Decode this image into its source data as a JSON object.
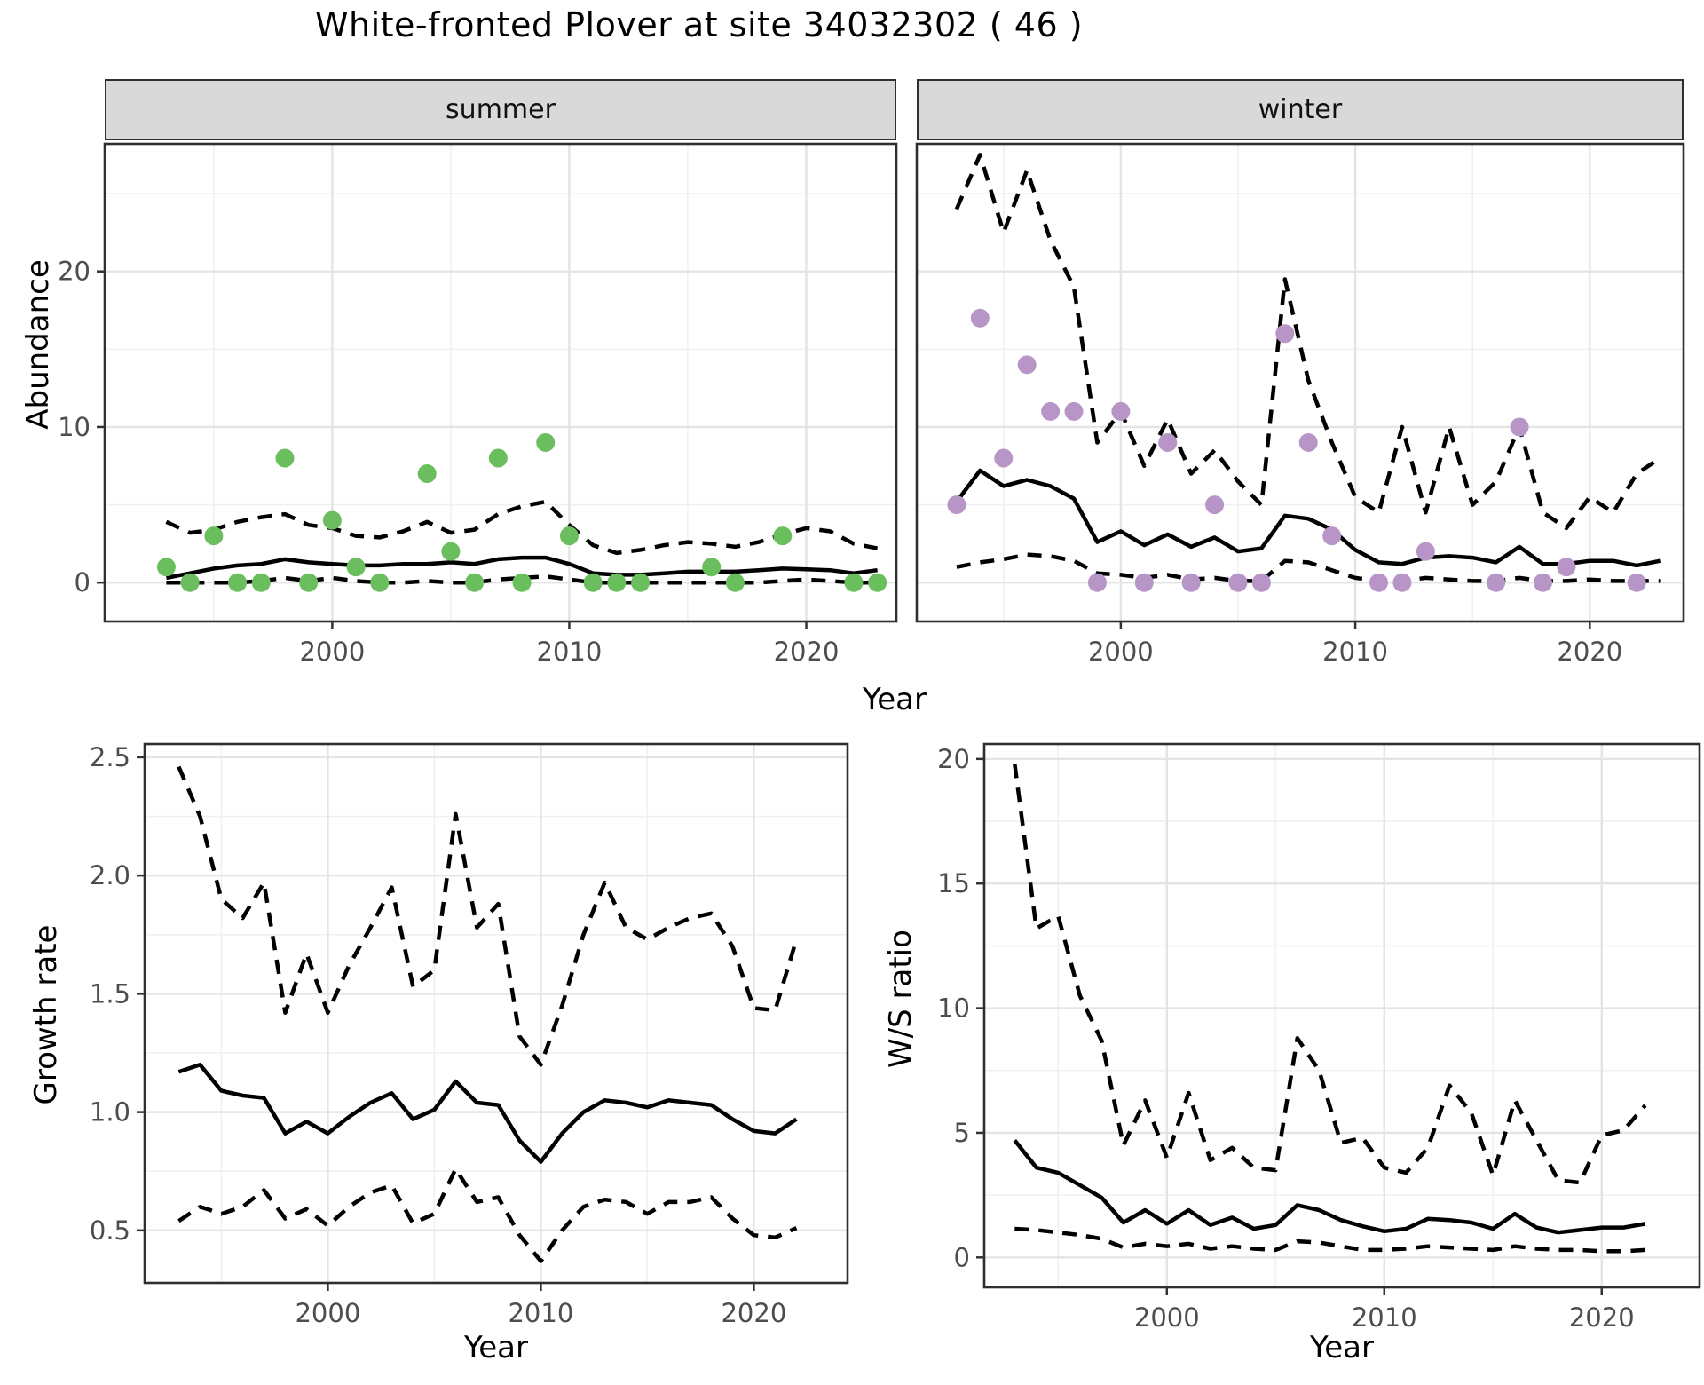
{
  "title": "White-fronted Plover at site 34032302 ( 46 )",
  "axis_labels": {
    "x": "Year",
    "y_abundance": "Abundance",
    "y_growth": "Growth rate",
    "y_ws": "W/S ratio"
  },
  "facets": {
    "summer": "summer",
    "winter": "winter"
  },
  "colors": {
    "summer_point": "#6BBE5E",
    "winter_point": "#B795C7",
    "line": "#000000",
    "strip_bg": "#D9D9D9",
    "panel_border": "#2F2F2F",
    "grid_major": "#E4E4E4",
    "grid_minor": "#F0F0F0",
    "axis_text": "#4D4D4D",
    "tick": "#333333"
  },
  "chart_data": [
    {
      "id": "abundance-summer",
      "type": "line",
      "panel": "summer",
      "title_strip": "summer",
      "ylabel": "Abundance",
      "xlabel": "Year",
      "x_domain": [
        1990.4,
        2023.8
      ],
      "y_domain": [
        -2.5,
        28.2
      ],
      "x_ticks": [
        2000,
        2010,
        2020
      ],
      "x_tick_labels": [
        "2000",
        "2010",
        "2020"
      ],
      "x_minor": [
        1995,
        2005,
        2015
      ],
      "y_ticks": [
        0,
        10,
        20
      ],
      "y_tick_labels": [
        "0",
        "10",
        "20"
      ],
      "y_minor": [
        5,
        15,
        25
      ],
      "show_y_labels": true,
      "years": [
        1993,
        1994,
        1995,
        1996,
        1997,
        1998,
        1999,
        2000,
        2001,
        2002,
        2003,
        2004,
        2005,
        2006,
        2007,
        2008,
        2009,
        2010,
        2011,
        2012,
        2013,
        2014,
        2015,
        2016,
        2017,
        2018,
        2019,
        2020,
        2021,
        2022,
        2023
      ],
      "series": [
        {
          "name": "upper95",
          "style": "dashed",
          "values": [
            3.9,
            3.2,
            3.4,
            3.9,
            4.2,
            4.4,
            3.7,
            3.5,
            3.0,
            2.9,
            3.3,
            3.9,
            3.2,
            3.4,
            4.4,
            4.9,
            5.2,
            3.7,
            2.4,
            1.9,
            2.1,
            2.4,
            2.6,
            2.5,
            2.3,
            2.6,
            3.1,
            3.5,
            3.3,
            2.5,
            2.2
          ]
        },
        {
          "name": "fit",
          "style": "solid",
          "values": [
            0.3,
            0.6,
            0.9,
            1.1,
            1.2,
            1.5,
            1.3,
            1.2,
            1.1,
            1.1,
            1.2,
            1.2,
            1.3,
            1.2,
            1.5,
            1.6,
            1.6,
            1.2,
            0.6,
            0.5,
            0.5,
            0.6,
            0.7,
            0.7,
            0.7,
            0.8,
            0.9,
            0.85,
            0.8,
            0.6,
            0.8
          ]
        },
        {
          "name": "lower95",
          "style": "dashed",
          "values": [
            0,
            0,
            0,
            0,
            0.1,
            0.3,
            0.1,
            0.3,
            0.1,
            0,
            0,
            0.1,
            0,
            0,
            0.2,
            0.3,
            0.4,
            0.2,
            0,
            0,
            0,
            0,
            0,
            0,
            0,
            0,
            0.1,
            0.2,
            0.1,
            0,
            0
          ]
        }
      ],
      "points": {
        "name": "observed-counts",
        "color": "#6BBE5E",
        "data": [
          [
            1993,
            1
          ],
          [
            1994,
            0
          ],
          [
            1995,
            3
          ],
          [
            1996,
            0
          ],
          [
            1997,
            0
          ],
          [
            1998,
            8
          ],
          [
            1999,
            0
          ],
          [
            2000,
            4
          ],
          [
            2001,
            1
          ],
          [
            2002,
            0
          ],
          [
            2004,
            7
          ],
          [
            2005,
            2
          ],
          [
            2006,
            0
          ],
          [
            2007,
            8
          ],
          [
            2008,
            0
          ],
          [
            2009,
            9
          ],
          [
            2010,
            3
          ],
          [
            2011,
            0
          ],
          [
            2012,
            0
          ],
          [
            2013,
            0
          ],
          [
            2016,
            1
          ],
          [
            2017,
            0
          ],
          [
            2019,
            3
          ],
          [
            2022,
            0
          ],
          [
            2023,
            0
          ]
        ]
      }
    },
    {
      "id": "abundance-winter",
      "type": "line",
      "panel": "winter",
      "title_strip": "winter",
      "ylabel": "Abundance",
      "xlabel": "Year",
      "x_domain": [
        1991.3,
        2024.0
      ],
      "y_domain": [
        -2.5,
        28.2
      ],
      "x_ticks": [
        2000,
        2010,
        2020
      ],
      "x_tick_labels": [
        "2000",
        "2010",
        "2020"
      ],
      "x_minor": [
        1995,
        2005,
        2015
      ],
      "y_ticks": [
        0,
        10,
        20
      ],
      "y_tick_labels": [
        "0",
        "10",
        "20"
      ],
      "y_minor": [
        5,
        15,
        25
      ],
      "show_y_labels": false,
      "years": [
        1993,
        1994,
        1995,
        1996,
        1997,
        1998,
        1999,
        2000,
        2001,
        2002,
        2003,
        2004,
        2005,
        2006,
        2007,
        2008,
        2009,
        2010,
        2011,
        2012,
        2013,
        2014,
        2015,
        2016,
        2017,
        2018,
        2019,
        2020,
        2021,
        2022,
        2023
      ],
      "series": [
        {
          "name": "upper95",
          "style": "dashed",
          "values": [
            24,
            27.5,
            22.5,
            26.5,
            22,
            19,
            9,
            11,
            7.5,
            10.5,
            7,
            8.5,
            6.5,
            5,
            19.5,
            13,
            9,
            5.5,
            4.5,
            10,
            4.5,
            10,
            5,
            6.5,
            10,
            4.5,
            3.5,
            5.5,
            4.5,
            7,
            8
          ]
        },
        {
          "name": "fit",
          "style": "solid",
          "values": [
            5.2,
            7.2,
            6.2,
            6.6,
            6.2,
            5.4,
            2.6,
            3.3,
            2.4,
            3.1,
            2.3,
            2.9,
            2.0,
            2.2,
            4.3,
            4.1,
            3.4,
            2.1,
            1.3,
            1.2,
            1.6,
            1.7,
            1.6,
            1.3,
            2.3,
            1.2,
            1.2,
            1.4,
            1.4,
            1.1,
            1.4
          ]
        },
        {
          "name": "lower95",
          "style": "dashed",
          "values": [
            1.0,
            1.3,
            1.5,
            1.8,
            1.7,
            1.4,
            0.6,
            0.5,
            0.3,
            0.5,
            0.2,
            0.3,
            0.1,
            0.1,
            1.4,
            1.3,
            0.8,
            0.3,
            0.1,
            0.1,
            0.3,
            0.2,
            0.1,
            0.1,
            0.3,
            0.1,
            0.1,
            0.2,
            0.1,
            0.1,
            0.1
          ]
        }
      ],
      "points": {
        "name": "observed-counts",
        "color": "#B795C7",
        "data": [
          [
            1993,
            5
          ],
          [
            1994,
            17
          ],
          [
            1995,
            8
          ],
          [
            1996,
            14
          ],
          [
            1997,
            11
          ],
          [
            1998,
            11
          ],
          [
            1999,
            0
          ],
          [
            2000,
            11
          ],
          [
            2001,
            0
          ],
          [
            2002,
            9
          ],
          [
            2003,
            0
          ],
          [
            2004,
            5
          ],
          [
            2005,
            0
          ],
          [
            2006,
            0
          ],
          [
            2007,
            16
          ],
          [
            2008,
            9
          ],
          [
            2009,
            3
          ],
          [
            2011,
            0
          ],
          [
            2012,
            0
          ],
          [
            2013,
            2
          ],
          [
            2016,
            0
          ],
          [
            2017,
            10
          ],
          [
            2018,
            0
          ],
          [
            2019,
            1
          ],
          [
            2022,
            0
          ]
        ]
      }
    },
    {
      "id": "growth-rate",
      "type": "line",
      "panel": "growth",
      "ylabel": "Growth rate",
      "xlabel": "Year",
      "x_domain": [
        1991.4,
        2024.4
      ],
      "y_domain": [
        0.278,
        2.556
      ],
      "x_ticks": [
        2000,
        2010,
        2020
      ],
      "x_tick_labels": [
        "2000",
        "2010",
        "2020"
      ],
      "x_minor": [
        1995,
        2005,
        2015
      ],
      "y_ticks": [
        0.5,
        1.0,
        1.5,
        2.0,
        2.5
      ],
      "y_tick_labels": [
        "0.5",
        "1.0",
        "1.5",
        "2.0",
        "2.5"
      ],
      "y_minor": [
        0.75,
        1.25,
        1.75,
        2.25
      ],
      "show_y_labels": true,
      "years": [
        1993,
        1994,
        1995,
        1996,
        1997,
        1998,
        1999,
        2000,
        2001,
        2002,
        2003,
        2004,
        2005,
        2006,
        2007,
        2008,
        2009,
        2010,
        2011,
        2012,
        2013,
        2014,
        2015,
        2016,
        2017,
        2018,
        2019,
        2020,
        2021,
        2022
      ],
      "series": [
        {
          "name": "upper95",
          "style": "dashed",
          "values": [
            2.46,
            2.25,
            1.9,
            1.82,
            1.97,
            1.42,
            1.67,
            1.42,
            1.62,
            1.78,
            1.95,
            1.53,
            1.6,
            2.26,
            1.78,
            1.88,
            1.32,
            1.2,
            1.45,
            1.75,
            1.97,
            1.78,
            1.73,
            1.78,
            1.82,
            1.84,
            1.7,
            1.44,
            1.43,
            1.73
          ]
        },
        {
          "name": "fit",
          "style": "solid",
          "values": [
            1.17,
            1.2,
            1.09,
            1.07,
            1.06,
            0.91,
            0.96,
            0.91,
            0.98,
            1.04,
            1.08,
            0.97,
            1.01,
            1.13,
            1.04,
            1.03,
            0.88,
            0.79,
            0.91,
            1.0,
            1.05,
            1.04,
            1.02,
            1.05,
            1.04,
            1.03,
            0.97,
            0.92,
            0.91,
            0.97
          ]
        },
        {
          "name": "lower95",
          "style": "dashed",
          "values": [
            0.54,
            0.6,
            0.57,
            0.6,
            0.67,
            0.55,
            0.59,
            0.52,
            0.6,
            0.66,
            0.69,
            0.53,
            0.57,
            0.76,
            0.62,
            0.64,
            0.48,
            0.37,
            0.5,
            0.6,
            0.63,
            0.62,
            0.57,
            0.62,
            0.62,
            0.64,
            0.55,
            0.48,
            0.47,
            0.51
          ]
        }
      ]
    },
    {
      "id": "ws-ratio",
      "type": "line",
      "panel": "ws",
      "ylabel": "W/S ratio",
      "xlabel": "Year",
      "x_domain": [
        1991.6,
        2024.5
      ],
      "y_domain": [
        -1.2,
        20.6
      ],
      "x_ticks": [
        2000,
        2010,
        2020
      ],
      "x_tick_labels": [
        "2000",
        "2010",
        "2020"
      ],
      "x_minor": [
        1995,
        2005,
        2015
      ],
      "y_ticks": [
        0,
        5,
        10,
        15,
        20
      ],
      "y_tick_labels": [
        "0",
        "5",
        "10",
        "15",
        "20"
      ],
      "y_minor": [
        2.5,
        7.5,
        12.5,
        17.5
      ],
      "show_y_labels": true,
      "years": [
        1993,
        1994,
        1995,
        1996,
        1997,
        1998,
        1999,
        2000,
        2001,
        2002,
        2003,
        2004,
        2005,
        2006,
        2007,
        2008,
        2009,
        2010,
        2011,
        2012,
        2013,
        2014,
        2015,
        2016,
        2017,
        2018,
        2019,
        2020,
        2021,
        2022
      ],
      "series": [
        {
          "name": "upper95",
          "style": "dashed",
          "values": [
            19.8,
            13.2,
            13.7,
            10.5,
            8.7,
            4.5,
            6.3,
            4.0,
            6.6,
            3.9,
            4.4,
            3.6,
            3.5,
            8.8,
            7.5,
            4.6,
            4.8,
            3.6,
            3.4,
            4.4,
            6.9,
            5.8,
            3.3,
            6.3,
            4.7,
            3.1,
            3.0,
            4.9,
            5.1,
            6.1
          ]
        },
        {
          "name": "fit",
          "style": "solid",
          "values": [
            4.7,
            3.6,
            3.4,
            2.9,
            2.4,
            1.4,
            1.9,
            1.35,
            1.9,
            1.3,
            1.6,
            1.15,
            1.3,
            2.1,
            1.9,
            1.5,
            1.25,
            1.05,
            1.15,
            1.55,
            1.5,
            1.4,
            1.15,
            1.75,
            1.2,
            1.0,
            1.1,
            1.2,
            1.2,
            1.35
          ]
        },
        {
          "name": "lower95",
          "style": "dashed",
          "values": [
            1.15,
            1.1,
            1.0,
            0.9,
            0.75,
            0.4,
            0.55,
            0.45,
            0.55,
            0.35,
            0.45,
            0.35,
            0.3,
            0.65,
            0.6,
            0.45,
            0.3,
            0.3,
            0.35,
            0.45,
            0.4,
            0.35,
            0.3,
            0.45,
            0.35,
            0.3,
            0.3,
            0.25,
            0.25,
            0.3
          ]
        }
      ]
    }
  ]
}
